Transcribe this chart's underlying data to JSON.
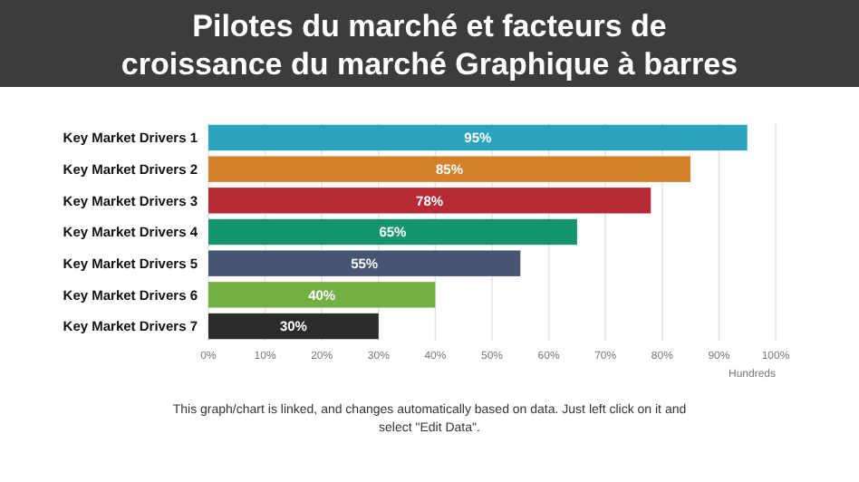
{
  "chart_data": {
    "type": "bar",
    "orientation": "horizontal",
    "title": "Pilotes du marché et facteurs de croissance du marché Graphique à barres",
    "xlabel": "Hundreds",
    "categories": [
      "Key Market Drivers 1",
      "Key Market Drivers 2",
      "Key Market Drivers 3",
      "Key Market Drivers 4",
      "Key Market Drivers 5",
      "Key Market Drivers 6",
      "Key Market Drivers 7"
    ],
    "values": [
      95,
      85,
      78,
      65,
      55,
      40,
      30
    ],
    "colors": [
      "#2ba3bf",
      "#d4812b",
      "#b52a35",
      "#14946f",
      "#465570",
      "#73b044",
      "#2b2b2b"
    ],
    "value_labels": [
      "95%",
      "85%",
      "78%",
      "65%",
      "55%",
      "40%",
      "30%"
    ],
    "xlim": [
      0,
      100
    ],
    "xticks": [
      {
        "value": 0,
        "label": "0%"
      },
      {
        "value": 10,
        "label": "10%"
      },
      {
        "value": 20,
        "label": "20%"
      },
      {
        "value": 30,
        "label": "30%"
      },
      {
        "value": 40,
        "label": "40%"
      },
      {
        "value": 50,
        "label": "50%"
      },
      {
        "value": 60,
        "label": "60%"
      },
      {
        "value": 70,
        "label": "70%"
      },
      {
        "value": 80,
        "label": "80%"
      },
      {
        "value": 90,
        "label": "90%"
      },
      {
        "value": 100,
        "label": "100%"
      }
    ],
    "grid": "x",
    "annotations": [
      "This graph/chart is linked, and changes automatically based on data. Just left click on it and select \"Edit Data\"."
    ]
  }
}
